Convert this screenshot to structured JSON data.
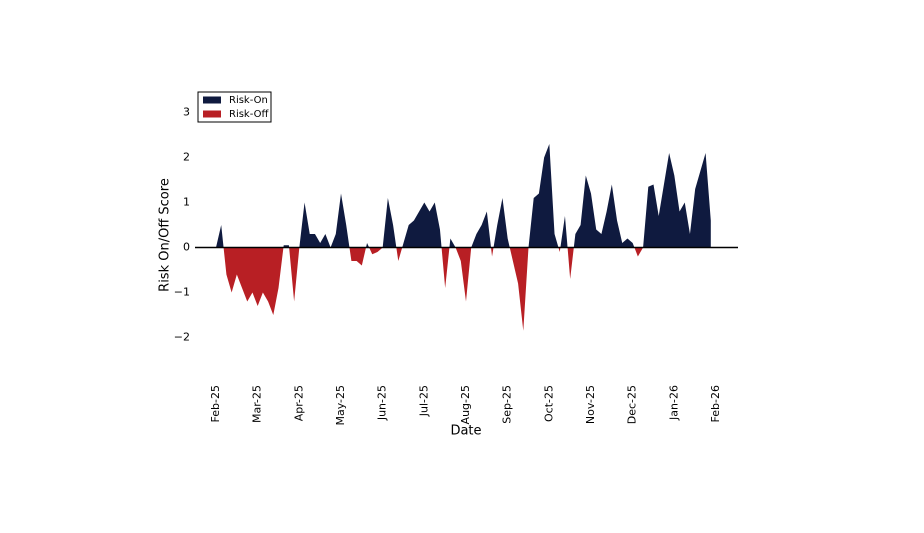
{
  "chart_data": {
    "type": "area",
    "xlabel": "Date",
    "ylabel": "Risk On/Off Score",
    "series": [
      {
        "name": "Risk-On",
        "color": "#0f1a3f"
      },
      {
        "name": "Risk-Off",
        "color": "#b81f24"
      }
    ],
    "legend": "upper left",
    "categories": [
      "Feb-25",
      null,
      null,
      null,
      null,
      null,
      null,
      null,
      "Mar-25",
      null,
      null,
      null,
      null,
      null,
      null,
      null,
      "Apr-25",
      null,
      null,
      null,
      null,
      null,
      null,
      null,
      "May-25",
      null,
      null,
      null,
      null,
      null,
      null,
      null,
      "Jun-25",
      null,
      null,
      null,
      null,
      null,
      null,
      null,
      "Jul-25",
      null,
      null,
      null,
      null,
      null,
      null,
      null,
      "Aug-25",
      null,
      null,
      null,
      null,
      null,
      null,
      null,
      "Sep-25",
      null,
      null,
      null,
      null,
      null,
      null,
      null,
      "Oct-25",
      null,
      null,
      null,
      null,
      null,
      null,
      null,
      "Nov-25",
      null,
      null,
      null,
      null,
      null,
      null,
      null,
      "Dec-25",
      null,
      null,
      null,
      null,
      null,
      null,
      null,
      "Jan-26",
      null,
      null,
      null,
      null,
      null,
      null,
      null,
      "Feb-26"
    ],
    "values": [
      0,
      0.5,
      -0.6,
      -1.0,
      -0.6,
      -0.9,
      -1.2,
      -1.0,
      -1.3,
      -1.0,
      -1.2,
      -1.5,
      -0.9,
      0.05,
      0.05,
      -1.2,
      0,
      1.0,
      0.3,
      0.3,
      0.1,
      0.3,
      0,
      0.3,
      1.2,
      0.5,
      -0.3,
      -0.3,
      -0.4,
      0.1,
      -0.15,
      -0.1,
      0,
      1.1,
      0.5,
      -0.3,
      0.1,
      0.5,
      0.6,
      0.8,
      1.0,
      0.8,
      1.0,
      0.4,
      -0.9,
      0.2,
      0,
      -0.3,
      -1.2,
      0,
      0.3,
      0.5,
      0.8,
      -0.2,
      0.5,
      1.1,
      0.2,
      -0.3,
      -0.8,
      -1.85,
      0,
      1.1,
      1.2,
      2.0,
      2.3,
      0.3,
      -0.1,
      0.7,
      -0.7,
      0.3,
      0.5,
      1.6,
      1.2,
      0.4,
      0.3,
      0.8,
      1.4,
      0.6,
      0.1,
      0.2,
      0.1,
      -0.2,
      0,
      1.35,
      1.4,
      0.7,
      1.4,
      2.1,
      1.6,
      0.8,
      1.0,
      0.3,
      1.3,
      1.7,
      2.1,
      0.6,
      null
    ],
    "ylim": [
      -2.7,
      3.5
    ],
    "yticks": [
      {
        "value": -2,
        "label": "−2"
      },
      {
        "value": -1,
        "label": "−1"
      },
      0,
      1,
      2,
      3
    ]
  }
}
